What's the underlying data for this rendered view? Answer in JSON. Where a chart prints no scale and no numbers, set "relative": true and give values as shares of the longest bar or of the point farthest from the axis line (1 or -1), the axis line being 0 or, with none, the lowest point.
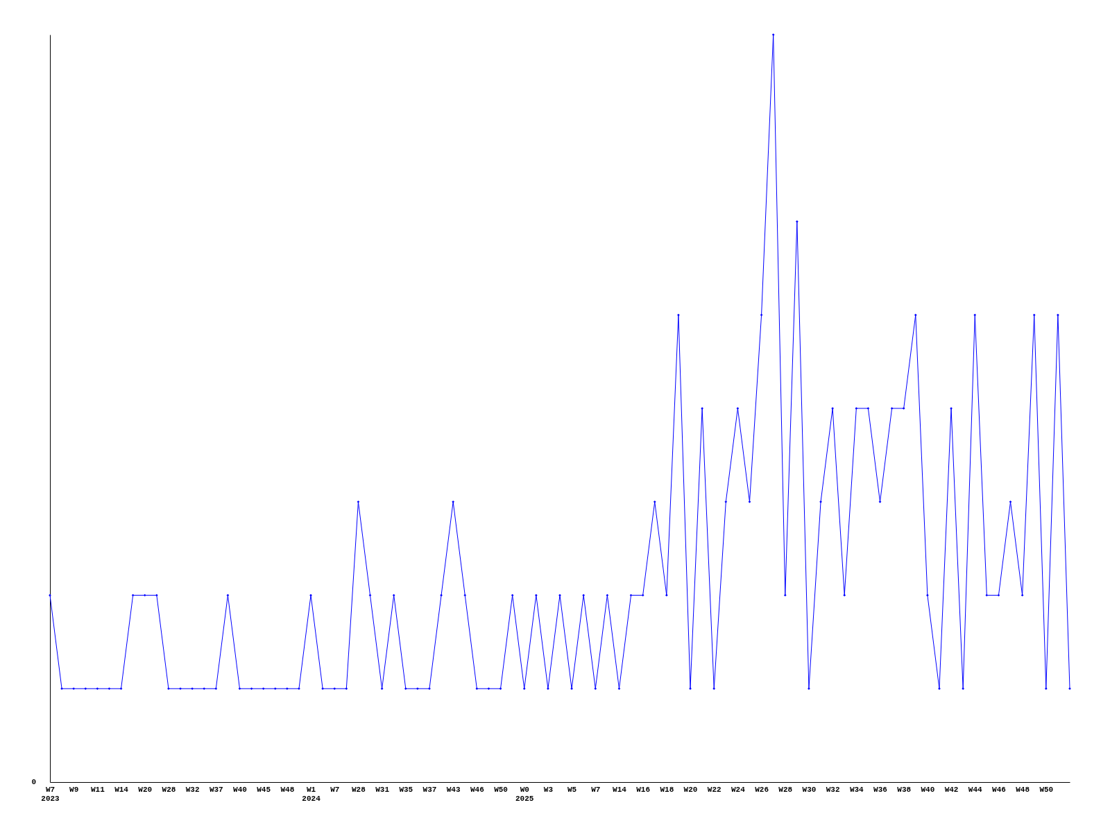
{
  "chart_data": {
    "type": "line",
    "relative": true,
    "marker": "diamond",
    "grid": false,
    "annotations": [
      "0"
    ],
    "categories": [
      "W7\n2023",
      null,
      "W9",
      null,
      "W11",
      null,
      "W14",
      null,
      "W20",
      null,
      "W28",
      null,
      "W32",
      null,
      "W37",
      null,
      "W40",
      null,
      "W45",
      null,
      "W48",
      null,
      "W1\n2024",
      null,
      "W7",
      null,
      "W28",
      null,
      "W31",
      null,
      "W35",
      null,
      "W37",
      null,
      "W43",
      null,
      "W46",
      null,
      "W50",
      null,
      "W0\n2025",
      null,
      "W3",
      null,
      "W5",
      null,
      "W7",
      null,
      "W14",
      null,
      "W16",
      null,
      "W18",
      null,
      "W20",
      null,
      "W22",
      null,
      "W24",
      null,
      "W26",
      null,
      "W28",
      null,
      "W30",
      null,
      "W32",
      null,
      "W34",
      null,
      "W36",
      null,
      "W38",
      null,
      "W40",
      null,
      "W42",
      null,
      "W44",
      null,
      "W46",
      null,
      "W48",
      null,
      "W50",
      null,
      null
    ],
    "series": [
      {
        "color": "#0000ff",
        "values": [
          0.25,
          0.125,
          0.125,
          0.125,
          0.125,
          0.125,
          0.125,
          0.25,
          0.25,
          0.25,
          0.125,
          0.125,
          0.125,
          0.125,
          0.125,
          0.25,
          0.125,
          0.125,
          0.125,
          0.125,
          0.125,
          0.125,
          0.25,
          0.125,
          0.125,
          0.125,
          0.375,
          0.25,
          0.125,
          0.25,
          0.125,
          0.125,
          0.125,
          0.25,
          0.375,
          0.25,
          0.125,
          0.125,
          0.125,
          0.25,
          0.125,
          0.25,
          0.125,
          0.25,
          0.125,
          0.25,
          0.125,
          0.25,
          0.125,
          0.25,
          0.25,
          0.375,
          0.25,
          0.625,
          0.125,
          0.5,
          0.125,
          0.375,
          0.5,
          0.375,
          0.625,
          1,
          0.25,
          0.75,
          0.125,
          0.375,
          0.5,
          0.25,
          0.5,
          0.5,
          0.375,
          0.5,
          0.5,
          0.625,
          0.25,
          0.125,
          0.5,
          0.125,
          0.625,
          0.25,
          0.25,
          0.375,
          0.25,
          0.625,
          0.125,
          0.625,
          0.125
        ]
      }
    ]
  }
}
